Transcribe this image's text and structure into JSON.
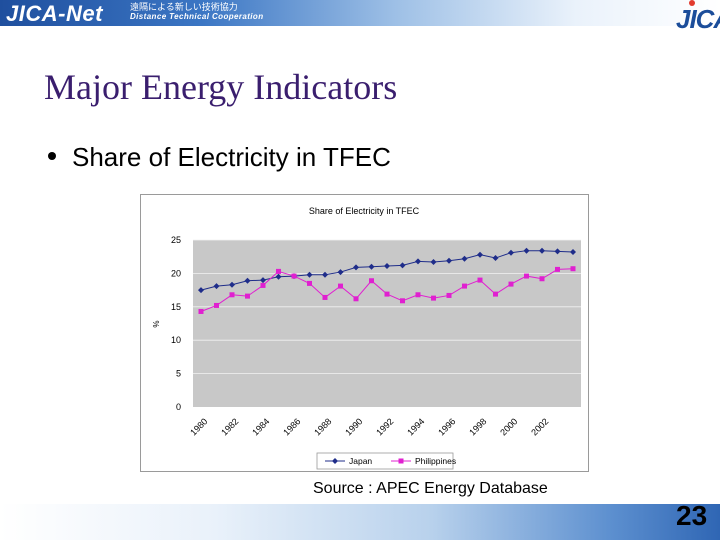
{
  "header": {
    "brand": "JICA-Net",
    "tagline_jp": "遠隔による新しい技術協力",
    "tagline_en": "Distance Technical Cooperation",
    "logo": "JICA"
  },
  "slide": {
    "title": "Major Energy Indicators",
    "bullet": "Share of Electricity in TFEC",
    "source": "Source : APEC Energy Database",
    "page_number": "23"
  },
  "chart_data": {
    "type": "line",
    "title": "Share of Electricity in TFEC",
    "xlabel": "",
    "ylabel": "%",
    "x": [
      1980,
      1981,
      1982,
      1983,
      1984,
      1985,
      1986,
      1987,
      1988,
      1989,
      1990,
      1991,
      1992,
      1993,
      1994,
      1995,
      1996,
      1997,
      1998,
      1999,
      2000,
      2001,
      2002,
      2003,
      2004
    ],
    "x_tick_labels": [
      "1980",
      "1982",
      "1984",
      "1986",
      "1988",
      "1990",
      "1992",
      "1994",
      "1996",
      "1998",
      "2000",
      "2002"
    ],
    "y_ticks": [
      0,
      5,
      10,
      15,
      20,
      25
    ],
    "ylim": [
      0,
      25
    ],
    "grid": true,
    "legend_position": "bottom",
    "series": [
      {
        "name": "Japan",
        "color": "#1f2d8a",
        "marker": "diamond",
        "values": [
          17.5,
          18.1,
          18.3,
          18.9,
          19.0,
          19.5,
          19.6,
          19.8,
          19.8,
          20.2,
          20.9,
          21.0,
          21.1,
          21.2,
          21.8,
          21.7,
          21.9,
          22.2,
          22.8,
          22.3,
          23.1,
          23.4,
          23.4,
          23.3,
          23.2
        ]
      },
      {
        "name": "Philippines",
        "color": "#e020d0",
        "marker": "square",
        "values": [
          14.3,
          15.2,
          16.8,
          16.6,
          18.2,
          20.3,
          19.6,
          18.5,
          16.4,
          18.1,
          16.2,
          18.9,
          16.9,
          15.9,
          16.8,
          16.3,
          16.7,
          18.1,
          19.0,
          16.9,
          18.4,
          19.6,
          19.2,
          20.6,
          20.7
        ]
      }
    ]
  }
}
